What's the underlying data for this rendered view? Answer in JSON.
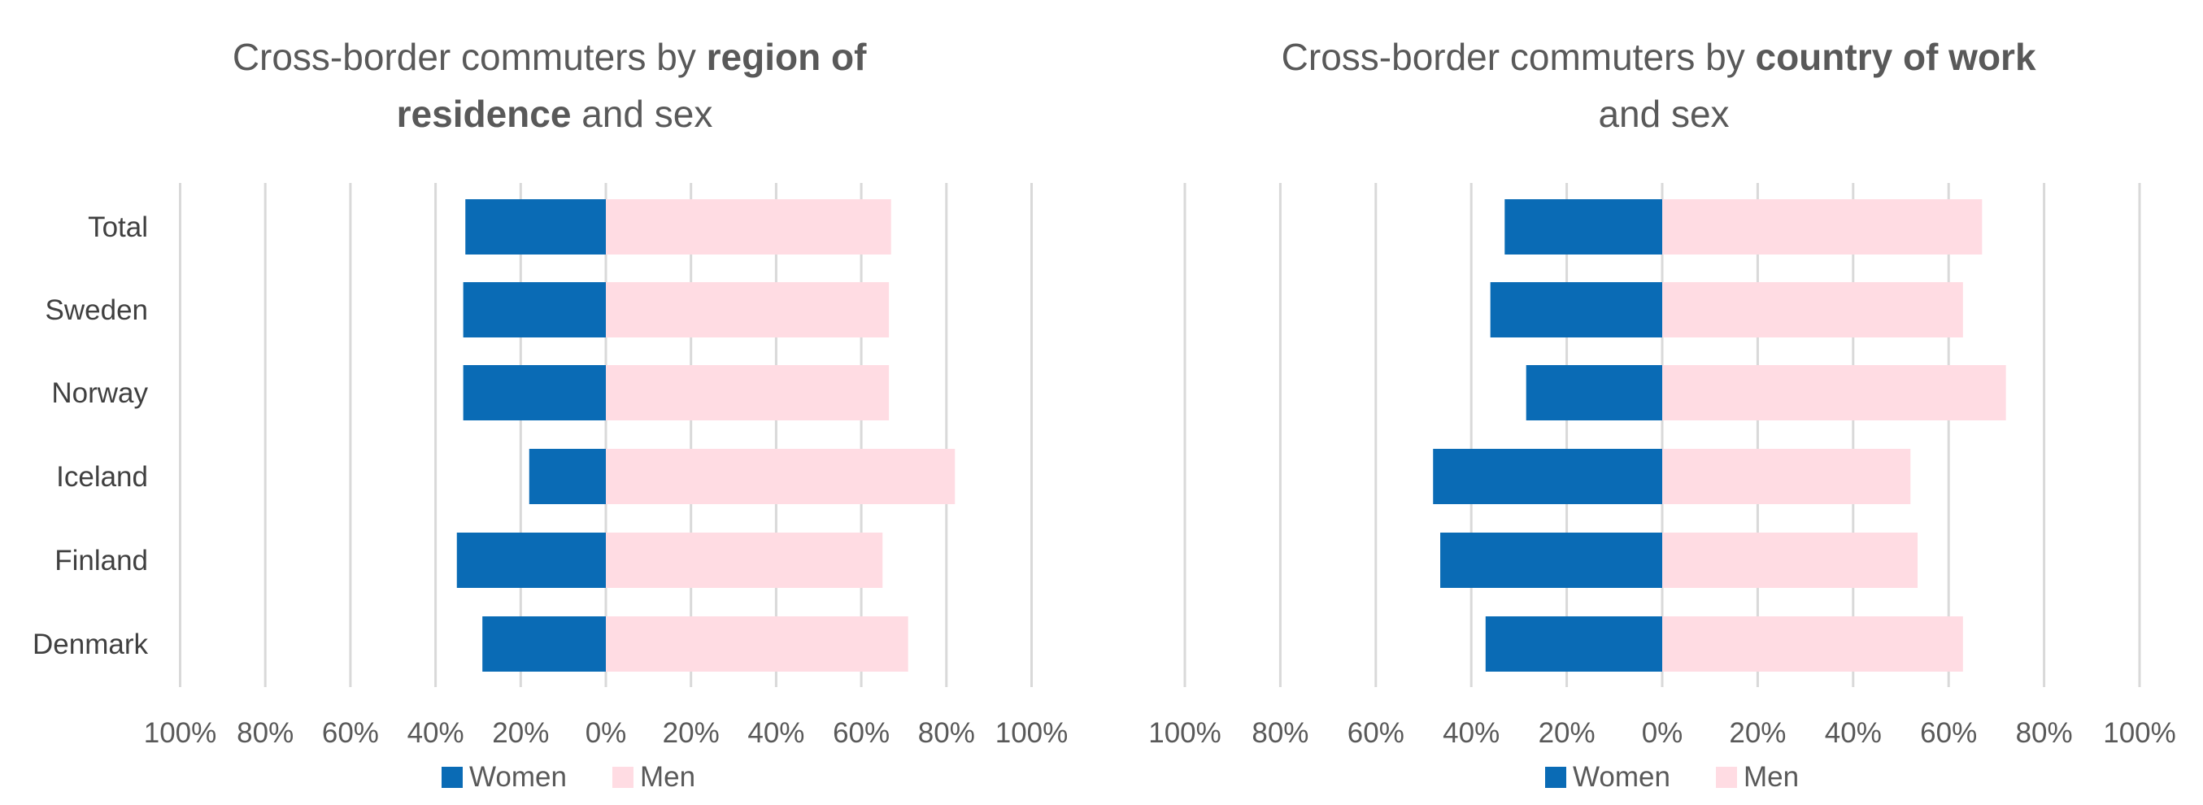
{
  "colors": {
    "women": "#0a6bb5",
    "men": "#ffdce3",
    "grid": "#d9d9d9",
    "text": "#595959"
  },
  "legend": {
    "women": "Women",
    "men": "Men"
  },
  "chart_data": [
    {
      "type": "bar",
      "orientation": "horizontal-diverging",
      "title_parts": [
        {
          "text": "Cross-border commuters by ",
          "bold": false
        },
        {
          "text": "region of",
          "bold": true
        },
        {
          "text": "residence",
          "bold": true
        },
        {
          "text": " and sex",
          "bold": false
        }
      ],
      "categories": [
        "Total",
        "Sweden",
        "Norway",
        "Iceland",
        "Finland",
        "Denmark"
      ],
      "series": [
        {
          "name": "Women",
          "values": [
            33,
            33.5,
            33.5,
            18,
            35,
            29
          ]
        },
        {
          "name": "Men",
          "values": [
            67,
            66.5,
            66.5,
            82,
            65,
            71
          ]
        }
      ],
      "xlim": [
        -100,
        100
      ],
      "xticks": [
        "100%",
        "80%",
        "60%",
        "40%",
        "20%",
        "0%",
        "20%",
        "40%",
        "60%",
        "80%",
        "100%"
      ],
      "grid": true,
      "legend_position": "bottom"
    },
    {
      "type": "bar",
      "orientation": "horizontal-diverging",
      "title_parts": [
        {
          "text": "Cross-border commuters by ",
          "bold": false
        },
        {
          "text": "country of work",
          "bold": true
        },
        {
          "text": "and sex",
          "bold": false
        }
      ],
      "categories": [
        "Total",
        "Sweden",
        "Norway",
        "Iceland",
        "Finland",
        "Denmark"
      ],
      "series": [
        {
          "name": "Women",
          "values": [
            33,
            36,
            28.5,
            48,
            46.5,
            37
          ]
        },
        {
          "name": "Men",
          "values": [
            67,
            63,
            72,
            52,
            53.5,
            63
          ]
        }
      ],
      "xlim": [
        -100,
        100
      ],
      "xticks": [
        "100%",
        "80%",
        "60%",
        "40%",
        "20%",
        "0%",
        "20%",
        "40%",
        "60%",
        "80%",
        "100%"
      ],
      "grid": true,
      "legend_position": "bottom"
    }
  ]
}
